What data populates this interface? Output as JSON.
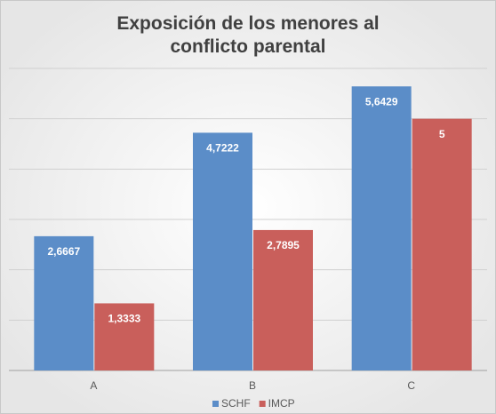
{
  "chart_data": {
    "type": "bar",
    "title": "Exposición de los menores al conflicto parental",
    "categories": [
      "A",
      "B",
      "C"
    ],
    "series": [
      {
        "name": "SCHF",
        "color": "#5b8dc8",
        "values": [
          2.6667,
          4.7222,
          5.6429
        ],
        "value_labels": [
          "2,6667",
          "4,7222",
          "5,6429"
        ]
      },
      {
        "name": "IMCP",
        "color": "#c95f5b",
        "values": [
          1.3333,
          2.7895,
          5
        ],
        "value_labels": [
          "1,3333",
          "2,7895",
          "5"
        ]
      }
    ],
    "ylim": [
      0,
      6
    ],
    "yticks": [
      0,
      1,
      2,
      3,
      4,
      5,
      6
    ],
    "grid": true,
    "legend": "bottom"
  }
}
